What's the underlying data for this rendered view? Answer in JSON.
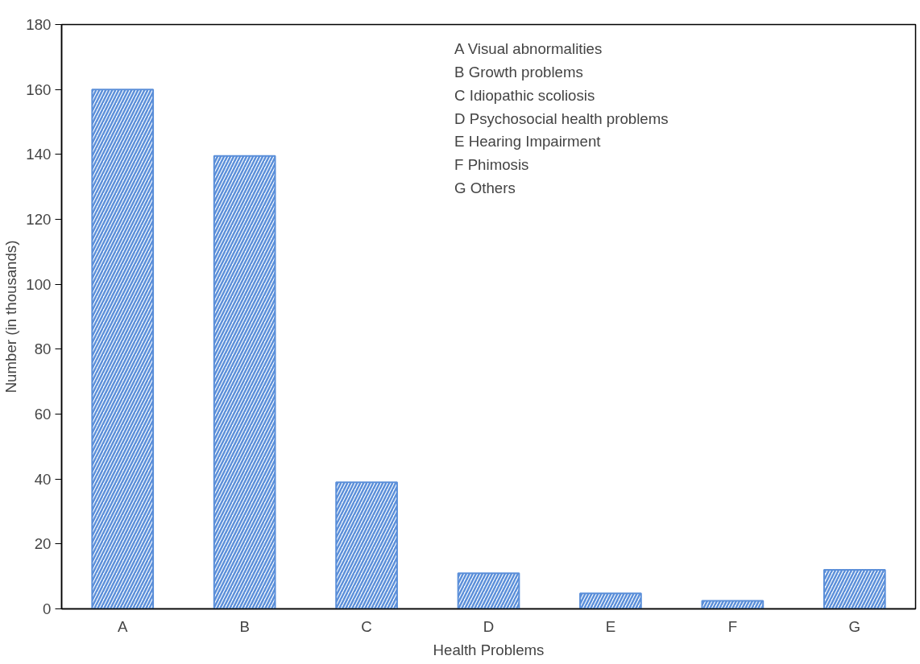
{
  "chart_data": {
    "type": "bar",
    "xlabel": "Health Problems",
    "ylabel": "Number (in thousands)",
    "categories": [
      "A",
      "B",
      "C",
      "D",
      "E",
      "F",
      "G"
    ],
    "values": [
      160,
      139.5,
      39,
      11,
      4.8,
      2.5,
      12
    ],
    "color": "#5b8fd9",
    "ylim": [
      0,
      180
    ],
    "yticks": [
      0,
      20,
      40,
      60,
      80,
      100,
      120,
      140,
      160,
      180
    ],
    "grid": false,
    "annotations": [
      "A  Visual abnormalities",
      "B  Growth problems",
      "C  Idiopathic scoliosis",
      "D  Psychosocial health problems",
      "E  Hearing Impairment",
      "F  Phimosis",
      "G  Others"
    ]
  }
}
